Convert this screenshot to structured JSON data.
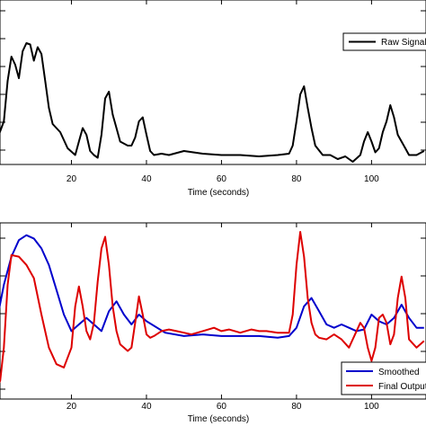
{
  "chart_data": [
    {
      "type": "line",
      "xlabel": "Time (seconds)",
      "ylabel": "",
      "xlim": [
        0,
        115
      ],
      "xticks": [
        20,
        40,
        60,
        80,
        100
      ],
      "ylim": [
        0,
        1
      ],
      "grid": false,
      "legend_placement": "top-right",
      "series": [
        {
          "name": "Raw Signal",
          "color": "#000000",
          "x": [
            0,
            2,
            3,
            4,
            5,
            6,
            7,
            8,
            9,
            10,
            11,
            12,
            13,
            14,
            15,
            17,
            19,
            21,
            22,
            23,
            24,
            25,
            26,
            27,
            28,
            29,
            30,
            31,
            32,
            33,
            35,
            36,
            37,
            38,
            39,
            40,
            41,
            42,
            44,
            46,
            50,
            55,
            60,
            65,
            70,
            75,
            78,
            79,
            80,
            81,
            82,
            83,
            84,
            85,
            87,
            89,
            91,
            93,
            95,
            97,
            98,
            99,
            100,
            101,
            102,
            103,
            104,
            105,
            106,
            107,
            108,
            109,
            110,
            112,
            114
          ],
          "y": [
            0.15,
            0.3,
            0.6,
            0.78,
            0.72,
            0.62,
            0.82,
            0.88,
            0.87,
            0.75,
            0.85,
            0.8,
            0.6,
            0.4,
            0.28,
            0.22,
            0.1,
            0.05,
            0.15,
            0.25,
            0.2,
            0.08,
            0.05,
            0.03,
            0.2,
            0.47,
            0.52,
            0.35,
            0.25,
            0.15,
            0.12,
            0.12,
            0.18,
            0.3,
            0.33,
            0.2,
            0.08,
            0.05,
            0.06,
            0.05,
            0.08,
            0.06,
            0.05,
            0.05,
            0.04,
            0.05,
            0.06,
            0.12,
            0.3,
            0.5,
            0.56,
            0.4,
            0.25,
            0.12,
            0.05,
            0.05,
            0.02,
            0.04,
            0.0,
            0.05,
            0.15,
            0.22,
            0.15,
            0.07,
            0.1,
            0.22,
            0.3,
            0.42,
            0.33,
            0.2,
            0.15,
            0.1,
            0.05,
            0.05,
            0.08
          ]
        }
      ]
    },
    {
      "type": "line",
      "xlabel": "Time (seconds)",
      "ylabel": "",
      "xlim": [
        0,
        115
      ],
      "xticks": [
        20,
        40,
        60,
        80,
        100
      ],
      "ylim": [
        0,
        1
      ],
      "grid": false,
      "legend_placement": "bottom-right",
      "series": [
        {
          "name": "Smoothed",
          "color": "#0000cc",
          "x": [
            0,
            2,
            4,
            6,
            8,
            10,
            12,
            14,
            16,
            18,
            20,
            22,
            24,
            26,
            28,
            30,
            32,
            34,
            36,
            38,
            40,
            45,
            50,
            55,
            60,
            65,
            70,
            75,
            78,
            80,
            82,
            84,
            86,
            88,
            90,
            92,
            94,
            96,
            98,
            100,
            102,
            104,
            106,
            108,
            110,
            112,
            114
          ],
          "y": [
            0.45,
            0.68,
            0.85,
            0.95,
            0.98,
            0.96,
            0.9,
            0.8,
            0.65,
            0.5,
            0.4,
            0.44,
            0.48,
            0.44,
            0.4,
            0.52,
            0.58,
            0.5,
            0.44,
            0.5,
            0.46,
            0.39,
            0.37,
            0.38,
            0.37,
            0.37,
            0.37,
            0.36,
            0.37,
            0.42,
            0.55,
            0.6,
            0.52,
            0.44,
            0.42,
            0.44,
            0.42,
            0.4,
            0.41,
            0.5,
            0.46,
            0.44,
            0.48,
            0.56,
            0.48,
            0.42,
            0.42
          ]
        },
        {
          "name": "Final Output",
          "color": "#dd0000",
          "x": [
            0,
            1,
            2,
            3,
            4,
            6,
            8,
            10,
            12,
            14,
            16,
            18,
            20,
            21,
            22,
            23,
            24,
            25,
            26,
            27,
            28,
            29,
            30,
            31,
            32,
            33,
            34,
            35,
            36,
            37,
            38,
            39,
            40,
            41,
            42,
            44,
            46,
            48,
            50,
            52,
            55,
            58,
            60,
            62,
            65,
            68,
            70,
            72,
            75,
            78,
            79,
            80,
            81,
            82,
            83,
            84,
            85,
            86,
            88,
            90,
            92,
            94,
            96,
            97,
            98,
            99,
            100,
            101,
            102,
            103,
            104,
            105,
            106,
            107,
            108,
            109,
            110,
            112,
            114
          ],
          "y": [
            0.05,
            0.1,
            0.3,
            0.68,
            0.86,
            0.85,
            0.8,
            0.72,
            0.5,
            0.3,
            0.2,
            0.18,
            0.3,
            0.55,
            0.67,
            0.55,
            0.4,
            0.35,
            0.45,
            0.7,
            0.9,
            0.97,
            0.8,
            0.55,
            0.4,
            0.32,
            0.3,
            0.28,
            0.3,
            0.45,
            0.61,
            0.5,
            0.38,
            0.36,
            0.37,
            0.4,
            0.41,
            0.4,
            0.39,
            0.38,
            0.4,
            0.42,
            0.4,
            0.41,
            0.39,
            0.41,
            0.4,
            0.4,
            0.39,
            0.39,
            0.5,
            0.8,
            1.0,
            0.85,
            0.6,
            0.45,
            0.38,
            0.36,
            0.35,
            0.38,
            0.35,
            0.3,
            0.4,
            0.45,
            0.42,
            0.3,
            0.22,
            0.3,
            0.48,
            0.5,
            0.45,
            0.32,
            0.38,
            0.6,
            0.73,
            0.6,
            0.35,
            0.3,
            0.34
          ]
        }
      ]
    }
  ]
}
